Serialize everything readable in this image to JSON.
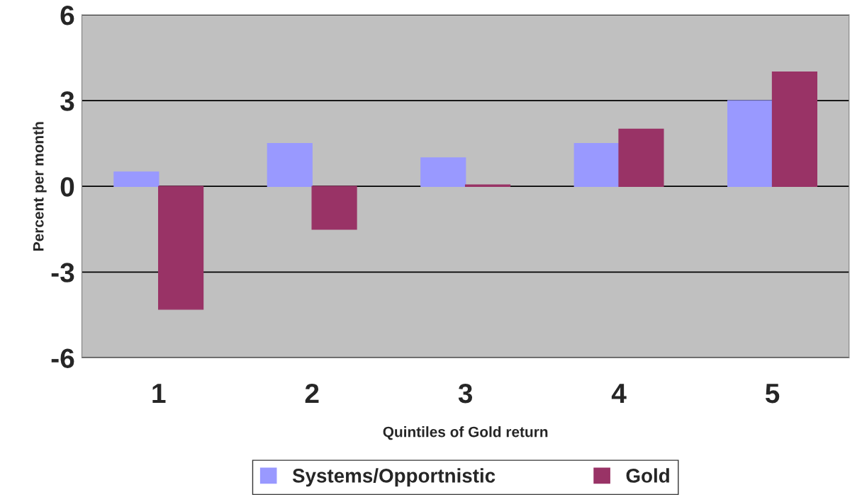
{
  "chart_data": {
    "type": "bar",
    "xlabel": "Quintiles of Gold return",
    "ylabel": "Percent per month",
    "categories": [
      "1",
      "2",
      "3",
      "4",
      "5"
    ],
    "series": [
      {
        "name": "Systems/Opportnistic",
        "color": "#9999ff",
        "values": [
          0.5,
          1.5,
          1.0,
          1.5,
          3.0
        ]
      },
      {
        "name": "Gold",
        "color": "#993366",
        "values": [
          -4.3,
          -1.5,
          0.05,
          2.0,
          4.0
        ]
      }
    ],
    "ylim": [
      -6,
      6
    ],
    "yticks": [
      -6,
      -3,
      0,
      3,
      6
    ],
    "grid": "y",
    "legend": "bottom"
  }
}
